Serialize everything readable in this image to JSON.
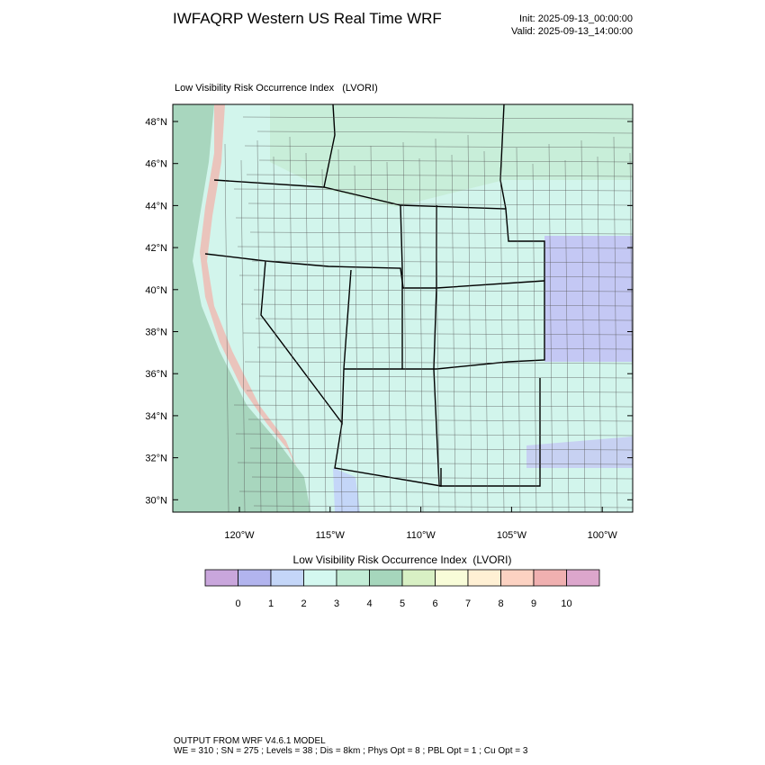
{
  "header": {
    "title": "IWFAQRP Western US Real Time WRF",
    "init": "Init: 2025-09-13_00:00:00",
    "valid": "Valid: 2025-09-13_14:00:00"
  },
  "map": {
    "title": "Low Visibility Risk Occurrence Index   (LVORI)",
    "lat_labels": [
      "48°N",
      "46°N",
      "44°N",
      "42°N",
      "40°N",
      "38°N",
      "36°N",
      "34°N",
      "32°N",
      "30°N"
    ],
    "lon_labels": [
      "120°W",
      "115°W",
      "110°W",
      "105°W",
      "100°W"
    ]
  },
  "colorbar": {
    "title": "Low Visibility Risk Occurrence Index  (LVORI)",
    "labels": [
      "0",
      "1",
      "2",
      "3",
      "4",
      "5",
      "6",
      "7",
      "8",
      "9",
      "10"
    ],
    "colors": [
      "#c9a6dc",
      "#b2b4ee",
      "#c4d6f8",
      "#d4f8f0",
      "#c2ecd6",
      "#a6d6bc",
      "#d8f0c4",
      "#f8fcd8",
      "#fff0d4",
      "#fcd2c2",
      "#f0b0b0",
      "#dca6cc"
    ]
  },
  "footer": {
    "line1": "OUTPUT FROM WRF V4.6.1 MODEL",
    "line2": "WE = 310 ; SN = 275 ; Levels = 38 ; Dis = 8km ; Phys Opt = 8 ; PBL Opt = 1 ; Cu Opt = 3"
  }
}
